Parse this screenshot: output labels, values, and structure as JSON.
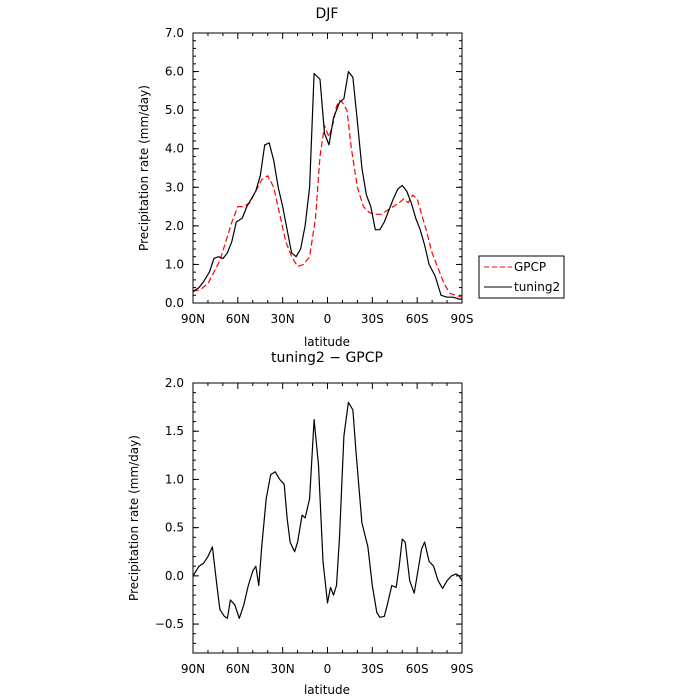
{
  "chart_data": [
    {
      "type": "line",
      "title": "DJF",
      "xlabel": "latitude",
      "ylabel": "Precipitation rate (mm/day)",
      "ylim": [
        0,
        7
      ],
      "xlim": [
        90,
        -90
      ],
      "grid": false,
      "legend_position": "right",
      "x_ticks": [
        90,
        60,
        30,
        0,
        -30,
        -60,
        -90
      ],
      "x_tick_labels": [
        "90N",
        "60N",
        "30N",
        "0",
        "30S",
        "60S",
        "90S"
      ],
      "y_ticks": [
        0,
        1,
        2,
        3,
        4,
        5,
        6,
        7
      ],
      "y_tick_labels": [
        "0.0",
        "1.0",
        "2.0",
        "3.0",
        "4.0",
        "5.0",
        "6.0",
        "7.0"
      ],
      "series": [
        {
          "name": "GPCP",
          "color": "#ff0000",
          "dash": "dashed",
          "x": [
            90,
            85,
            80,
            76,
            72,
            68,
            64,
            60,
            56,
            52,
            48,
            44,
            40,
            36,
            32,
            28,
            24,
            20,
            16,
            12,
            8,
            5,
            2,
            -1,
            -4,
            -6,
            -8,
            -10,
            -13,
            -16,
            -20,
            -24,
            -28,
            -32,
            -36,
            -40,
            -44,
            -48,
            -51,
            -54,
            -57,
            -60,
            -63,
            -66,
            -70,
            -74,
            -78,
            -82,
            -86,
            -90
          ],
          "y": [
            0.3,
            0.35,
            0.5,
            0.8,
            1.1,
            1.6,
            2.1,
            2.5,
            2.5,
            2.6,
            2.9,
            3.2,
            3.3,
            3.0,
            2.3,
            1.6,
            1.2,
            0.95,
            1.0,
            1.2,
            2.2,
            3.8,
            4.6,
            4.3,
            4.7,
            5.1,
            5.25,
            5.2,
            5.0,
            4.0,
            3.0,
            2.5,
            2.35,
            2.3,
            2.3,
            2.4,
            2.5,
            2.6,
            2.7,
            2.6,
            2.8,
            2.7,
            2.3,
            1.9,
            1.3,
            0.9,
            0.5,
            0.25,
            0.2,
            0.15
          ]
        },
        {
          "name": "tuning2",
          "color": "#000000",
          "dash": "solid",
          "x": [
            90,
            86,
            83,
            79,
            76,
            73,
            70,
            67,
            64,
            61,
            57,
            54,
            51,
            48,
            45,
            42,
            39,
            36,
            33,
            30,
            27,
            24,
            21,
            18,
            15,
            12,
            9,
            5,
            2,
            -1,
            -4,
            -6,
            -8,
            -11,
            -14,
            -17,
            -20,
            -23,
            -26,
            -29,
            -32,
            -35,
            -38,
            -41,
            -44,
            -47,
            -50,
            -53,
            -56,
            -59,
            -62,
            -65,
            -68,
            -72,
            -76,
            -80,
            -84,
            -88,
            -90
          ],
          "y": [
            0.3,
            0.4,
            0.55,
            0.8,
            1.15,
            1.2,
            1.15,
            1.3,
            1.6,
            2.1,
            2.2,
            2.5,
            2.7,
            2.9,
            3.3,
            4.1,
            4.15,
            3.7,
            3.0,
            2.5,
            1.9,
            1.3,
            1.2,
            1.4,
            2.0,
            3.0,
            5.95,
            5.8,
            4.4,
            4.1,
            4.8,
            5.0,
            5.2,
            5.3,
            6.0,
            5.85,
            4.7,
            3.5,
            2.8,
            2.5,
            1.9,
            1.9,
            2.1,
            2.4,
            2.7,
            2.95,
            3.05,
            2.9,
            2.6,
            2.2,
            1.9,
            1.5,
            1.0,
            0.7,
            0.2,
            0.15,
            0.15,
            0.1,
            0.1
          ]
        }
      ]
    },
    {
      "type": "line",
      "title": "tuning2 − GPCP",
      "xlabel": "latitude",
      "ylabel": "Precipitation rate (mm/day)",
      "ylim": [
        -0.8,
        2.0
      ],
      "xlim": [
        90,
        -90
      ],
      "grid": false,
      "x_ticks": [
        90,
        60,
        30,
        0,
        -30,
        -60,
        -90
      ],
      "x_tick_labels": [
        "90N",
        "60N",
        "30N",
        "0",
        "30S",
        "60S",
        "90S"
      ],
      "y_ticks": [
        -0.5,
        0,
        0.5,
        1.0,
        1.5,
        2.0
      ],
      "y_tick_labels": [
        "−0.5",
        "0.0",
        "0.5",
        "1.0",
        "1.5",
        "2.0"
      ],
      "series": [
        {
          "color": "#000000",
          "dash": "solid",
          "x": [
            90,
            86,
            83,
            80,
            77,
            74,
            72,
            69,
            67,
            65,
            62,
            59,
            56,
            53,
            50,
            48,
            46,
            44,
            41,
            38,
            35,
            32,
            29,
            27,
            25,
            22,
            20,
            17,
            15,
            12,
            9,
            6,
            3,
            0,
            -2,
            -4,
            -6,
            -8,
            -11,
            -14,
            -17,
            -19,
            -23,
            -27,
            -30,
            -33,
            -35,
            -38,
            -40,
            -43,
            -46,
            -48,
            -50,
            -52,
            -55,
            -58,
            -61,
            -63,
            -65,
            -68,
            -71,
            -74,
            -77,
            -80,
            -83,
            -86,
            -88,
            -90
          ],
          "y": [
            0.0,
            0.1,
            0.13,
            0.2,
            0.3,
            -0.1,
            -0.35,
            -0.42,
            -0.44,
            -0.25,
            -0.3,
            -0.44,
            -0.3,
            -0.1,
            0.05,
            0.1,
            -0.1,
            0.3,
            0.8,
            1.05,
            1.08,
            1.0,
            0.95,
            0.6,
            0.35,
            0.25,
            0.35,
            0.63,
            0.6,
            0.8,
            1.62,
            1.15,
            0.15,
            -0.28,
            -0.12,
            -0.2,
            -0.1,
            0.4,
            1.45,
            1.8,
            1.72,
            1.3,
            0.55,
            0.3,
            -0.1,
            -0.38,
            -0.43,
            -0.42,
            -0.3,
            -0.1,
            -0.12,
            0.1,
            0.38,
            0.35,
            -0.05,
            -0.18,
            0.1,
            0.28,
            0.35,
            0.15,
            0.1,
            -0.05,
            -0.13,
            -0.05,
            0.0,
            0.02,
            0.0,
            -0.05
          ]
        }
      ]
    }
  ]
}
